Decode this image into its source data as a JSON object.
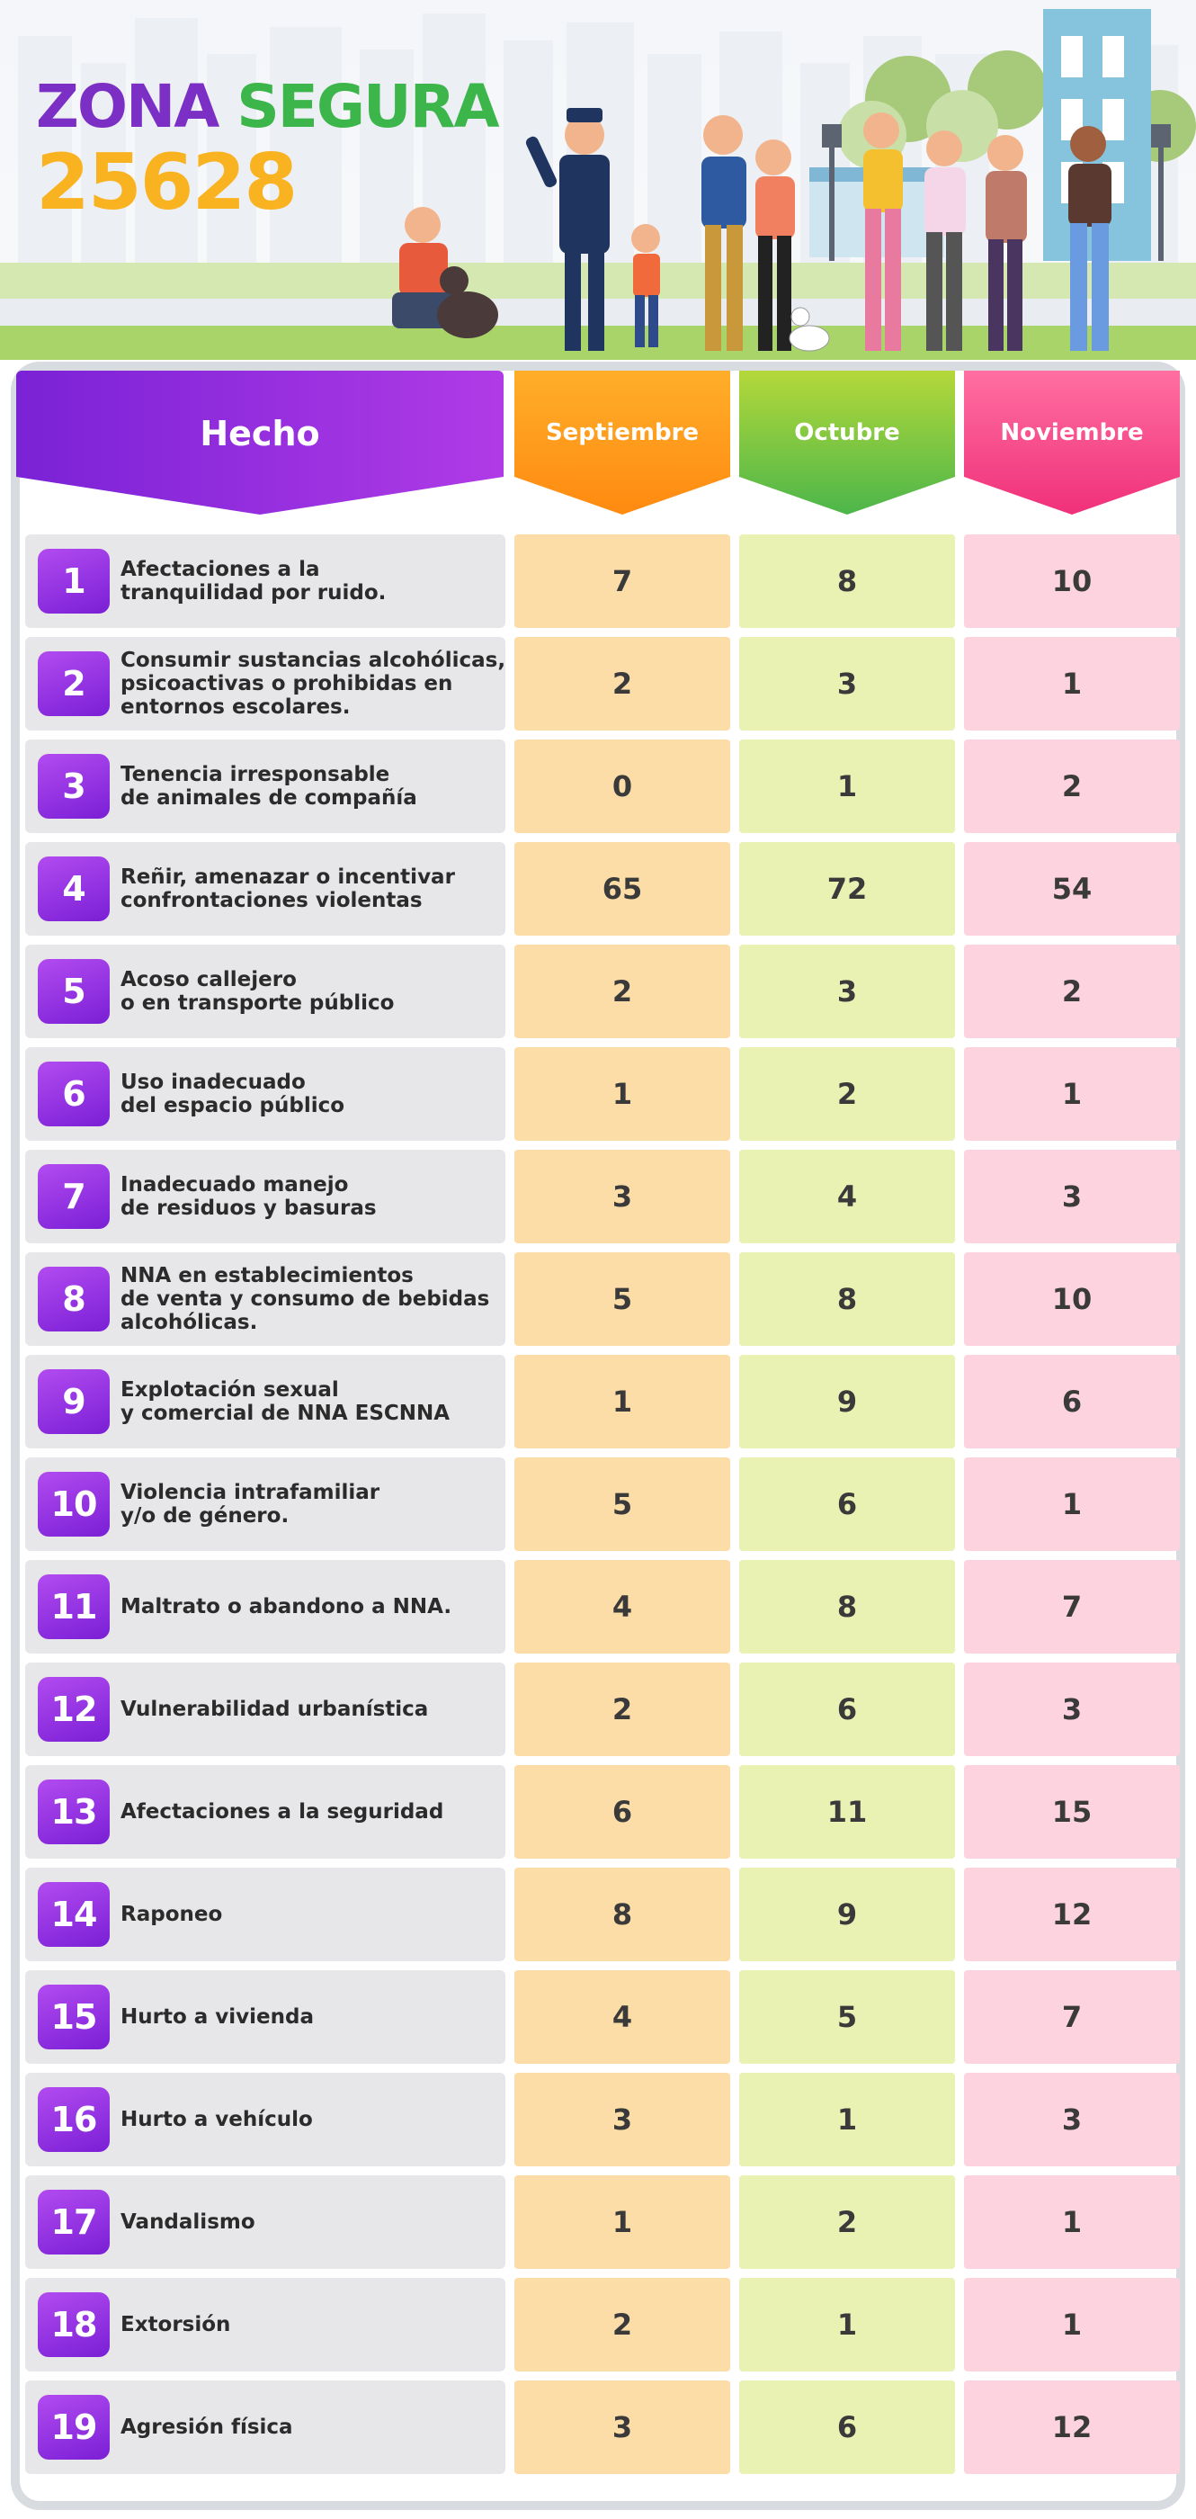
{
  "header": {
    "title_part1": "ZONA",
    "title_part2": "SEGURA",
    "title_number": "25628",
    "colors": {
      "purple": "#7b2fc4",
      "green": "#3cb54a",
      "yellow": "#f9b320"
    }
  },
  "table": {
    "columns": {
      "hecho": "Hecho",
      "sep": "Septiembre",
      "oct": "Octubre",
      "nov": "Noviembre"
    },
    "rows": [
      {
        "num": "1",
        "hecho": "Afectaciones a la\ntranquilidad por ruido.",
        "sep": "7",
        "oct": "8",
        "nov": "10"
      },
      {
        "num": "2",
        "hecho": "Consumir sustancias alcohólicas,\npsicoactivas o prohibidas en\nentornos escolares.",
        "sep": "2",
        "oct": "3",
        "nov": "1"
      },
      {
        "num": "3",
        "hecho": "Tenencia irresponsable\nde animales de compañía",
        "sep": "0",
        "oct": "1",
        "nov": "2"
      },
      {
        "num": "4",
        "hecho": "Reñir, amenazar o incentivar\nconfrontaciones violentas",
        "sep": "65",
        "oct": "72",
        "nov": "54"
      },
      {
        "num": "5",
        "hecho": "Acoso callejero\no en transporte público",
        "sep": "2",
        "oct": "3",
        "nov": "2"
      },
      {
        "num": "6",
        "hecho": "Uso inadecuado\ndel espacio público",
        "sep": "1",
        "oct": "2",
        "nov": "1"
      },
      {
        "num": "7",
        "hecho": "Inadecuado manejo\nde residuos y basuras",
        "sep": "3",
        "oct": "4",
        "nov": "3"
      },
      {
        "num": "8",
        "hecho": "NNA en establecimientos\nde venta y consumo de bebidas\nalcohólicas.",
        "sep": "5",
        "oct": "8",
        "nov": "10"
      },
      {
        "num": "9",
        "hecho": "Explotación sexual\ny comercial de NNA ESCNNA",
        "sep": "1",
        "oct": "9",
        "nov": "6"
      },
      {
        "num": "10",
        "hecho": "Violencia intrafamiliar\ny/o de género.",
        "sep": "5",
        "oct": "6",
        "nov": "1"
      },
      {
        "num": "11",
        "hecho": "Maltrato o abandono a NNA.",
        "sep": "4",
        "oct": "8",
        "nov": "7"
      },
      {
        "num": "12",
        "hecho": "Vulnerabilidad urbanística",
        "sep": "2",
        "oct": "6",
        "nov": "3"
      },
      {
        "num": "13",
        "hecho": "Afectaciones a la seguridad",
        "sep": "6",
        "oct": "11",
        "nov": "15"
      },
      {
        "num": "14",
        "hecho": "Raponeo",
        "sep": "8",
        "oct": "9",
        "nov": "12"
      },
      {
        "num": "15",
        "hecho": "Hurto a vivienda",
        "sep": "4",
        "oct": "5",
        "nov": "7"
      },
      {
        "num": "16",
        "hecho": "Hurto a vehículo",
        "sep": "3",
        "oct": "1",
        "nov": "3"
      },
      {
        "num": "17",
        "hecho": "Vandalismo",
        "sep": "1",
        "oct": "2",
        "nov": "1"
      },
      {
        "num": "18",
        "hecho": "Extorsión",
        "sep": "2",
        "oct": "1",
        "nov": "1"
      },
      {
        "num": "19",
        "hecho": "Agresión física",
        "sep": "3",
        "oct": "6",
        "nov": "12"
      }
    ]
  }
}
